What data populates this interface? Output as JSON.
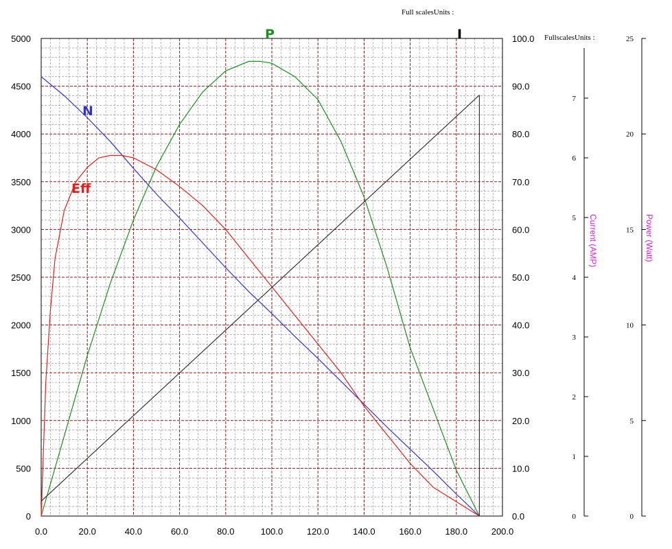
{
  "chart_data": {
    "type": "line",
    "x": {
      "range": [
        0,
        200
      ],
      "ticks": [
        "0.0",
        "20.0",
        "40.0",
        "60.0",
        "80.0",
        "100.0",
        "120.0",
        "140.0",
        "160.0",
        "180.0",
        "200.0"
      ]
    },
    "left_axis": {
      "range": [
        0,
        5000
      ],
      "ticks": [
        "0",
        "500",
        "1000",
        "1500",
        "2000",
        "2500",
        "3000",
        "3500",
        "4000",
        "4500",
        "5000"
      ]
    },
    "right_axis": {
      "range": [
        0,
        100
      ],
      "ticks": [
        "0.0",
        "10.0",
        "20.0",
        "30.0",
        "40.0",
        "50.0",
        "60.0",
        "70.0",
        "80.0",
        "90.0",
        "100.0"
      ]
    },
    "current_axis": {
      "label": "Current (AMP)",
      "range": [
        0,
        8
      ],
      "ticks": [
        "0",
        "1",
        "2",
        "3",
        "4",
        "5",
        "6",
        "7"
      ]
    },
    "power_axis": {
      "label": "Power (Watt)",
      "range": [
        0,
        25
      ],
      "ticks": [
        "0",
        "5",
        "10",
        "15",
        "20",
        "25"
      ]
    },
    "full_scales_label_top": "Full scalesUnits :",
    "full_scales_label_side": "FullscalesUnits :",
    "grid": true,
    "series": [
      {
        "name": "N",
        "color": "#3333cc",
        "axis": "left",
        "points": [
          [
            0,
            4600
          ],
          [
            10,
            4400
          ],
          [
            20,
            4170
          ],
          [
            30,
            3920
          ],
          [
            40,
            3640
          ],
          [
            50,
            3370
          ],
          [
            60,
            3120
          ],
          [
            70,
            2860
          ],
          [
            80,
            2600
          ],
          [
            90,
            2350
          ],
          [
            100,
            2120
          ],
          [
            110,
            1880
          ],
          [
            120,
            1650
          ],
          [
            130,
            1410
          ],
          [
            140,
            1170
          ],
          [
            150,
            930
          ],
          [
            160,
            700
          ],
          [
            170,
            470
          ],
          [
            180,
            230
          ],
          [
            190,
            0
          ]
        ]
      },
      {
        "name": "P",
        "color": "#228b22",
        "axis": "power",
        "points": [
          [
            0,
            0
          ],
          [
            10,
            4.2
          ],
          [
            20,
            8.4
          ],
          [
            30,
            12.2
          ],
          [
            40,
            15.5
          ],
          [
            50,
            18.3
          ],
          [
            60,
            20.5
          ],
          [
            70,
            22.2
          ],
          [
            80,
            23.3
          ],
          [
            90,
            23.8
          ],
          [
            95,
            23.8
          ],
          [
            100,
            23.7
          ],
          [
            110,
            23.0
          ],
          [
            120,
            21.8
          ],
          [
            130,
            19.6
          ],
          [
            140,
            16.7
          ],
          [
            150,
            13.0
          ],
          [
            160,
            8.8
          ],
          [
            170,
            5.6
          ],
          [
            180,
            2.4
          ],
          [
            190,
            0
          ]
        ]
      },
      {
        "name": "Eff",
        "color": "#dd2222",
        "axis": "right",
        "points": [
          [
            0,
            0
          ],
          [
            2,
            28
          ],
          [
            4,
            43
          ],
          [
            6,
            54
          ],
          [
            8,
            59
          ],
          [
            10,
            64
          ],
          [
            15,
            70
          ],
          [
            20,
            73
          ],
          [
            25,
            75
          ],
          [
            30,
            75.5
          ],
          [
            35,
            75.5
          ],
          [
            40,
            75
          ],
          [
            50,
            72.5
          ],
          [
            60,
            69
          ],
          [
            70,
            65
          ],
          [
            80,
            60
          ],
          [
            90,
            54
          ],
          [
            100,
            48
          ],
          [
            110,
            42
          ],
          [
            120,
            36
          ],
          [
            130,
            30
          ],
          [
            140,
            23
          ],
          [
            150,
            17
          ],
          [
            160,
            11
          ],
          [
            170,
            6
          ],
          [
            180,
            3
          ],
          [
            190,
            0
          ]
        ]
      },
      {
        "name": "I",
        "color": "#333333",
        "axis": "current",
        "points": [
          [
            0,
            0.25
          ],
          [
            190,
            7.05
          ]
        ]
      }
    ]
  }
}
